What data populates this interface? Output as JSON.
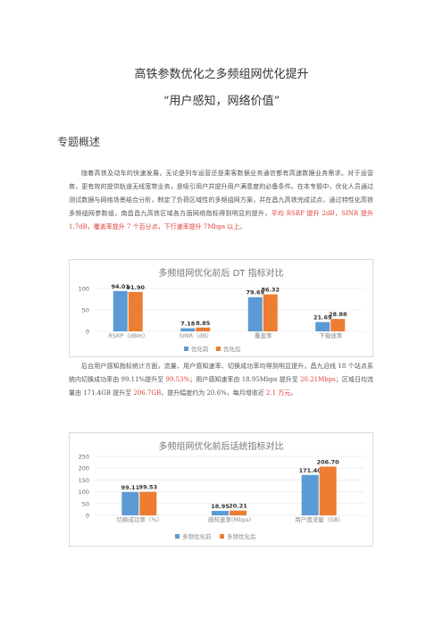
{
  "doc": {
    "title": "高铁参数优化之多频组网优化提升",
    "subtitle": "“用户感知，网络价值”",
    "section": "专题概述",
    "para1_pre": "随着高铁及动车的快速发展，无论是列车运营还是乘客数据业务通信都有高速数据业务需求。对于运营商，更有效的提供轨道无线宽带业务，是吸引用户并提升用户满意度的必备条件。在本专题中，优化人员通过测试数据与网络场景结合分析，制定了负荷区域性的多频组网方案，并在昌九高铁完成试点，通过特性化高铁多频组网参数组，南昌昌九高铁区域各方面网络指标得到明显的提升，",
    "para1_red": "平均 RSRP 提升 2dB，SINR 提升 1.7dB，覆盖率提升 7 个百分点，下行速率提升 7Mbps 以上。",
    "para2_a": "后台用户感知指标统计方面，流量、用户感知速率、切换成功率均得到明显提升，昌九沿线 18 个站点系统内切换成功率由 99.11%提升至 ",
    "para2_b": "99.53%",
    "para2_c": "；用户感知速率由 18.95Mbps 提升至 ",
    "para2_d": "20.21Mbps",
    "para2_e": "；区域日均流量由 171.4GB 提升至 ",
    "para2_f": "206.7GB",
    "para2_g": "，提升幅度约为 20.6%，每月增收近 ",
    "para2_h": "2.1 万元",
    "para2_i": "。"
  },
  "colors": {
    "before": "#5b9bd5",
    "after": "#ed7d31"
  },
  "chart_data": [
    {
      "type": "bar",
      "title": "多频组网优化前后 DT 指标对比",
      "categories": [
        "RSRP（dBm）",
        "SINR（dB）",
        "覆盖率",
        "下载速率"
      ],
      "series": [
        {
          "name": "优化前",
          "values": [
            94.01,
            7.18,
            79.69,
            21.69
          ]
        },
        {
          "name": "优化后",
          "values": [
            91.9,
            8.85,
            86.32,
            28.88
          ]
        }
      ],
      "yticks": [
        0,
        50,
        100
      ],
      "ylim": [
        0,
        100
      ],
      "legend": "bottom"
    },
    {
      "type": "bar",
      "title": "多频组网优化前后话统指标对比",
      "categories": [
        "切换成功率（%）",
        "感知速率(Mbps)",
        "用户面流量（GB）"
      ],
      "series": [
        {
          "name": "多频优化前",
          "values": [
            99.11,
            18.95,
            171.4
          ]
        },
        {
          "name": "多频优化后",
          "values": [
            99.53,
            20.21,
            206.7
          ]
        }
      ],
      "yticks": [
        0,
        50,
        100,
        150,
        200,
        250
      ],
      "ylim": [
        0,
        250
      ],
      "legend": "bottom"
    }
  ]
}
